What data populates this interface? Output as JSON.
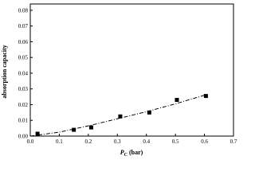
{
  "chart_data": {
    "type": "scatter",
    "xlabel": [
      "P",
      "C",
      " (bar)"
    ],
    "ylabel": "absorption capacity",
    "xlim": [
      0,
      0.7
    ],
    "xticks": [
      {
        "value": 0,
        "label": "0.0"
      },
      0.1,
      0.2,
      0.3,
      0.4,
      0.5,
      0.6,
      0.7
    ],
    "ylim": [
      0,
      0.084
    ],
    "yticks": [
      {
        "value": 0,
        "label": "0.00"
      },
      0.01,
      0.02,
      0.03,
      0.04,
      0.05,
      0.06,
      0.07,
      0.08
    ],
    "series": [
      {
        "style": "points",
        "color": "#000000",
        "x": [
          0.025,
          0.15,
          0.21,
          0.31,
          0.41,
          0.505,
          0.605
        ],
        "values": [
          0.0015,
          0.004,
          0.0055,
          0.0125,
          0.015,
          0.023,
          0.0255
        ]
      },
      {
        "style": "dashdot",
        "color": "#000000",
        "x": [
          0,
          0.1,
          0.2,
          0.3,
          0.4,
          0.5,
          0.6
        ],
        "values": [
          0,
          0.0025,
          0.0065,
          0.011,
          0.0155,
          0.0205,
          0.026
        ]
      }
    ]
  }
}
